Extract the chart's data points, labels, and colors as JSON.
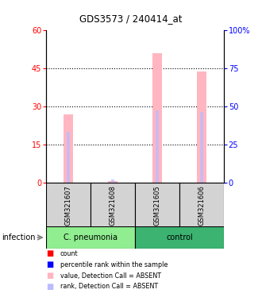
{
  "title": "GDS3573 / 240414_at",
  "samples": [
    "GSM321607",
    "GSM321608",
    "GSM321605",
    "GSM321606"
  ],
  "ylim_left": [
    0,
    60
  ],
  "ylim_right": [
    0,
    100
  ],
  "yticks_left": [
    0,
    15,
    30,
    45,
    60
  ],
  "yticks_right": [
    0,
    25,
    50,
    75,
    100
  ],
  "ytick_labels_right": [
    "0",
    "25",
    "50",
    "75",
    "100%"
  ],
  "pink_bar_color": "#FFB6C1",
  "lavender_bar_color": "#BBBBFF",
  "value_bars": [
    27.0,
    0.8,
    51.0,
    44.0
  ],
  "rank_bars": [
    20.0,
    1.5,
    28.5,
    28.0
  ],
  "grid_yticks": [
    15,
    30,
    45
  ],
  "sample_box_color": "#D3D3D3",
  "cpneumonia_color": "#90EE90",
  "control_color": "#3CB371",
  "legend_colors": [
    "#FF0000",
    "#0000FF",
    "#FFB6C1",
    "#BBBBFF"
  ],
  "legend_labels": [
    "count",
    "percentile rank within the sample",
    "value, Detection Call = ABSENT",
    "rank, Detection Call = ABSENT"
  ],
  "infection_label": "infection"
}
